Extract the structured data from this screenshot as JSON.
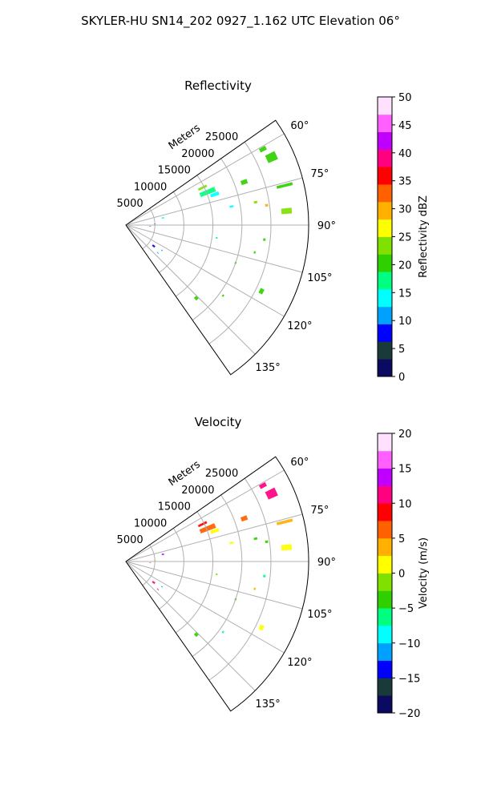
{
  "figure_title": "SKYLER-HU  SN14_202  0927_1.162 UTC Elevation 06°",
  "chart_data": [
    {
      "type": "polar-sector-radar",
      "title": "Reflectivity",
      "radial_label": "Meters",
      "radial_ticks": [
        "5000",
        "10000",
        "15000",
        "20000",
        "25000"
      ],
      "radial_tick_values": [
        5000,
        10000,
        15000,
        20000,
        25000
      ],
      "rlim": [
        0,
        31500
      ],
      "angle_ticks": [
        "60°",
        "75°",
        "90°",
        "105°",
        "120°",
        "135°"
      ],
      "angle_tick_values": [
        60,
        75,
        90,
        105,
        120,
        135
      ],
      "theta_range_deg": [
        55,
        145
      ],
      "grid": true,
      "colorbar": {
        "label": "Reflectivity dBZ",
        "range": [
          0,
          50
        ],
        "ticks": [
          "0",
          "5",
          "10",
          "15",
          "20",
          "25",
          "30",
          "35",
          "40",
          "45",
          "50"
        ],
        "tick_values": [
          0,
          5,
          10,
          15,
          20,
          25,
          30,
          35,
          40,
          45,
          50
        ]
      },
      "echoes": [
        {
          "theta": 68,
          "r": 15200,
          "dtheta": 3,
          "dr": 2800,
          "value": 18
        },
        {
          "theta": 64,
          "r": 14700,
          "dtheta": 1.5,
          "dr": 1600,
          "value": 22
        },
        {
          "theta": 71,
          "r": 16200,
          "dtheta": 2,
          "dr": 1500,
          "value": 14
        },
        {
          "theta": 70,
          "r": 21700,
          "dtheta": 2,
          "dr": 1100,
          "value": 19
        },
        {
          "theta": 65,
          "r": 27700,
          "dtheta": 3,
          "dr": 1800,
          "value": 20
        },
        {
          "theta": 61,
          "r": 27000,
          "dtheta": 1.5,
          "dr": 1200,
          "value": 21
        },
        {
          "theta": 76,
          "r": 28200,
          "dtheta": 1,
          "dr": 2800,
          "value": 20
        },
        {
          "theta": 85,
          "r": 27800,
          "dtheta": 2,
          "dr": 1800,
          "value": 22
        },
        {
          "theta": 80,
          "r": 22700,
          "dtheta": 1,
          "dr": 600,
          "value": 23
        },
        {
          "theta": 82,
          "r": 24500,
          "dtheta": 1,
          "dr": 500,
          "value": 31
        },
        {
          "theta": 80,
          "r": 18500,
          "dtheta": 1,
          "dr": 700,
          "value": 15
        },
        {
          "theta": 96,
          "r": 24000,
          "dtheta": 1,
          "dr": 400,
          "value": 20
        },
        {
          "theta": 102,
          "r": 22700,
          "dtheta": 1,
          "dr": 300,
          "value": 19
        },
        {
          "theta": 109,
          "r": 20000,
          "dtheta": 1,
          "dr": 300,
          "value": 20
        },
        {
          "theta": 116,
          "r": 26000,
          "dtheta": 2,
          "dr": 700,
          "value": 21
        },
        {
          "theta": 126,
          "r": 20700,
          "dtheta": 1,
          "dr": 300,
          "value": 19
        },
        {
          "theta": 136,
          "r": 17500,
          "dtheta": 2,
          "dr": 600,
          "value": 20
        },
        {
          "theta": 98,
          "r": 15800,
          "dtheta": 1,
          "dr": 300,
          "value": 18
        },
        {
          "theta": 79,
          "r": 6500,
          "dtheta": 2,
          "dr": 400,
          "value": 13
        },
        {
          "theta": 88,
          "r": 5000,
          "dtheta": 1,
          "dr": 300,
          "value": 3
        },
        {
          "theta": 93,
          "r": 4200,
          "dtheta": 1,
          "dr": 300,
          "value": 8
        },
        {
          "theta": 127,
          "r": 6000,
          "dtheta": 3,
          "dr": 500,
          "value": 9
        },
        {
          "theta": 121,
          "r": 1700,
          "dtheta": 2,
          "dr": 300,
          "value": 16
        },
        {
          "theta": 131,
          "r": 7300,
          "dtheta": 1,
          "dr": 400,
          "value": 12
        },
        {
          "theta": 125,
          "r": 7600,
          "dtheta": 1,
          "dr": 300,
          "value": 10
        }
      ]
    },
    {
      "type": "polar-sector-radar",
      "title": "Velocity",
      "radial_label": "Meters",
      "radial_ticks": [
        "5000",
        "10000",
        "15000",
        "20000",
        "25000"
      ],
      "radial_tick_values": [
        5000,
        10000,
        15000,
        20000,
        25000
      ],
      "rlim": [
        0,
        31500
      ],
      "angle_ticks": [
        "60°",
        "75°",
        "90°",
        "105°",
        "120°",
        "135°"
      ],
      "angle_tick_values": [
        60,
        75,
        90,
        105,
        120,
        135
      ],
      "theta_range_deg": [
        55,
        145
      ],
      "grid": true,
      "colorbar": {
        "label": "Velocity (m/s)",
        "range": [
          -20,
          20
        ],
        "ticks": [
          "−20",
          "−15",
          "−10",
          "−5",
          "0",
          "5",
          "10",
          "15",
          "20"
        ],
        "tick_values": [
          -20,
          -15,
          -10,
          -5,
          0,
          5,
          10,
          15,
          20
        ]
      },
      "echoes": [
        {
          "theta": 68,
          "r": 15200,
          "dtheta": 3,
          "dr": 2800,
          "value": 5
        },
        {
          "theta": 64,
          "r": 14700,
          "dtheta": 1.5,
          "dr": 1600,
          "value": 9
        },
        {
          "theta": 71,
          "r": 16200,
          "dtheta": 2,
          "dr": 1500,
          "value": 2
        },
        {
          "theta": 70,
          "r": 21700,
          "dtheta": 2,
          "dr": 1100,
          "value": 6
        },
        {
          "theta": 65,
          "r": 27700,
          "dtheta": 3,
          "dr": 1800,
          "value": 10
        },
        {
          "theta": 61,
          "r": 27000,
          "dtheta": 1.5,
          "dr": 1200,
          "value": 11
        },
        {
          "theta": 76,
          "r": 28200,
          "dtheta": 1,
          "dr": 2800,
          "value": 4
        },
        {
          "theta": 85,
          "r": 27800,
          "dtheta": 2,
          "dr": 1800,
          "value": 1
        },
        {
          "theta": 80,
          "r": 22700,
          "dtheta": 1,
          "dr": 600,
          "value": -5
        },
        {
          "theta": 82,
          "r": 24500,
          "dtheta": 1,
          "dr": 500,
          "value": -3
        },
        {
          "theta": 80,
          "r": 18500,
          "dtheta": 1,
          "dr": 700,
          "value": 1
        },
        {
          "theta": 96,
          "r": 24000,
          "dtheta": 1,
          "dr": 400,
          "value": -6
        },
        {
          "theta": 102,
          "r": 22700,
          "dtheta": 1,
          "dr": 300,
          "value": 3
        },
        {
          "theta": 109,
          "r": 20000,
          "dtheta": 1,
          "dr": 300,
          "value": -4
        },
        {
          "theta": 116,
          "r": 26000,
          "dtheta": 2,
          "dr": 700,
          "value": 2
        },
        {
          "theta": 126,
          "r": 20700,
          "dtheta": 1,
          "dr": 300,
          "value": -7
        },
        {
          "theta": 136,
          "r": 17500,
          "dtheta": 2,
          "dr": 600,
          "value": -5
        },
        {
          "theta": 98,
          "r": 15800,
          "dtheta": 1,
          "dr": 300,
          "value": -2
        },
        {
          "theta": 79,
          "r": 6500,
          "dtheta": 2,
          "dr": 400,
          "value": 14
        },
        {
          "theta": 88,
          "r": 5000,
          "dtheta": 1,
          "dr": 300,
          "value": -1
        },
        {
          "theta": 93,
          "r": 4200,
          "dtheta": 1,
          "dr": 300,
          "value": 9
        },
        {
          "theta": 127,
          "r": 6000,
          "dtheta": 3,
          "dr": 500,
          "value": 11
        },
        {
          "theta": 121,
          "r": 1700,
          "dtheta": 2,
          "dr": 300,
          "value": 2
        },
        {
          "theta": 131,
          "r": 7300,
          "dtheta": 1,
          "dr": 400,
          "value": 10
        },
        {
          "theta": 125,
          "r": 7600,
          "dtheta": 1,
          "dr": 300,
          "value": -12
        }
      ]
    }
  ],
  "colormap": {
    "stops": [
      "#0a0a60",
      "#1a3a3a",
      "#0000ff",
      "#00a0ff",
      "#00ffff",
      "#00ff80",
      "#30d000",
      "#80e000",
      "#ffff00",
      "#ffb000",
      "#ff6000",
      "#ff0000",
      "#ff0080",
      "#c000ff",
      "#ff60ff",
      "#ffe0ff"
    ]
  }
}
